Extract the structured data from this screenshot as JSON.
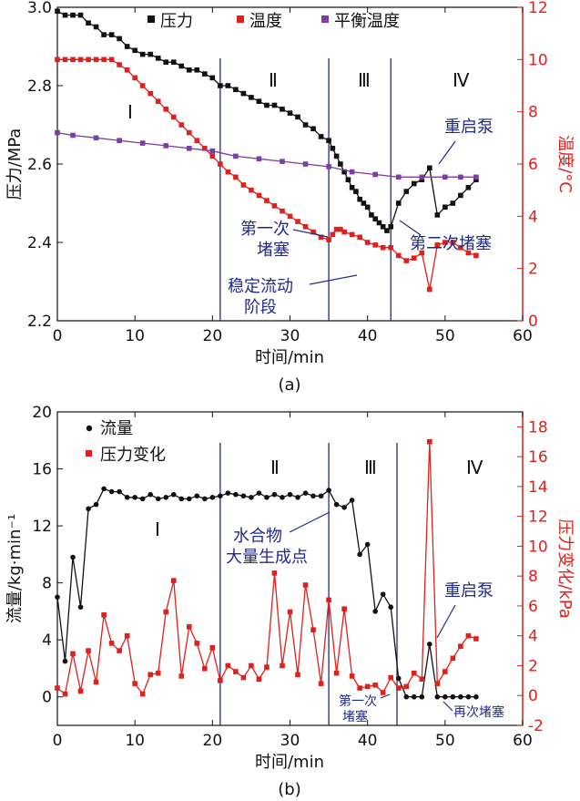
{
  "colors": {
    "black": "#111111",
    "red": "#e0201c",
    "purple": "#7a3fa0",
    "navy": "#222a8a"
  },
  "chart_data": [
    {
      "panel": "(a)",
      "type": "line",
      "x_label": "时间/min",
      "y_label_left": "压力/MPa",
      "y_label_right": "温度/°C",
      "xlim": [
        0,
        60
      ],
      "ylim_left": [
        2.2,
        3.0
      ],
      "ylim_right": [
        0,
        12
      ],
      "x_ticks": [
        "0",
        "10",
        "20",
        "30",
        "40",
        "50",
        "60"
      ],
      "y_ticks_left": [
        "2.2",
        "2.4",
        "2.6",
        "2.8",
        "3.0"
      ],
      "y_ticks_right": [
        "0",
        "2",
        "4",
        "6",
        "8",
        "10",
        "12"
      ],
      "legend": [
        "压力",
        "温度",
        "平衡温度"
      ],
      "series": [
        {
          "name": "压力",
          "axis": "left",
          "color": "#111111",
          "marker": "square",
          "x": [
            0,
            1,
            2,
            3,
            4,
            5,
            6,
            7,
            8,
            9,
            10,
            11,
            12,
            13,
            14,
            15,
            16,
            17,
            18,
            19,
            20,
            21,
            22,
            23,
            24,
            25,
            26,
            27,
            28,
            29,
            30,
            31,
            32,
            33,
            34,
            35,
            35.5,
            36,
            36.5,
            37,
            37.5,
            38,
            38.5,
            39,
            39.5,
            40,
            40.5,
            41,
            41.5,
            42,
            42.5,
            43,
            44,
            45,
            46,
            47,
            48,
            49,
            50,
            51,
            52,
            53,
            54
          ],
          "y": [
            2.99,
            2.98,
            2.98,
            2.98,
            2.96,
            2.95,
            2.93,
            2.93,
            2.92,
            2.9,
            2.89,
            2.88,
            2.88,
            2.87,
            2.86,
            2.86,
            2.85,
            2.84,
            2.84,
            2.83,
            2.82,
            2.8,
            2.8,
            2.79,
            2.78,
            2.77,
            2.76,
            2.75,
            2.75,
            2.74,
            2.73,
            2.72,
            2.7,
            2.69,
            2.67,
            2.66,
            2.64,
            2.62,
            2.6,
            2.58,
            2.56,
            2.54,
            2.53,
            2.51,
            2.5,
            2.49,
            2.47,
            2.46,
            2.45,
            2.44,
            2.43,
            2.44,
            2.5,
            2.53,
            2.55,
            2.56,
            2.59,
            2.47,
            2.49,
            2.5,
            2.52,
            2.54,
            2.56
          ]
        },
        {
          "name": "温度",
          "axis": "right",
          "color": "#e0201c",
          "marker": "square",
          "x": [
            0,
            1,
            2,
            3,
            4,
            5,
            6,
            7,
            8,
            9,
            10,
            11,
            12,
            13,
            14,
            15,
            16,
            17,
            18,
            19,
            20,
            21,
            22,
            23,
            24,
            25,
            26,
            27,
            28,
            29,
            30,
            31,
            32,
            33,
            34,
            35,
            35.5,
            36,
            36.5,
            37,
            38,
            39,
            40,
            41,
            42,
            43,
            44,
            45,
            46,
            47,
            48,
            49,
            50,
            51,
            52,
            53,
            54
          ],
          "y": [
            10.0,
            10.0,
            10.0,
            10.0,
            10.0,
            10.0,
            10.0,
            10.0,
            9.8,
            9.6,
            9.3,
            9.0,
            8.7,
            8.4,
            8.1,
            7.8,
            7.5,
            7.2,
            6.9,
            6.6,
            6.3,
            6.0,
            5.7,
            5.5,
            5.2,
            5.0,
            4.8,
            4.6,
            4.4,
            4.2,
            4.0,
            3.8,
            3.6,
            3.4,
            3.2,
            3.1,
            3.3,
            3.5,
            3.5,
            3.4,
            3.3,
            3.2,
            3.0,
            2.9,
            2.8,
            2.8,
            2.5,
            2.3,
            2.4,
            2.6,
            1.2,
            2.9,
            3.0,
            3.0,
            2.8,
            2.6,
            2.5
          ]
        },
        {
          "name": "平衡温度",
          "axis": "right",
          "color": "#7a3fa0",
          "marker": "square",
          "x": [
            0,
            2,
            5,
            8,
            11,
            14,
            17,
            20,
            23,
            26,
            29,
            32,
            35,
            38,
            41,
            44,
            47,
            50,
            52,
            54
          ],
          "y": [
            7.2,
            7.1,
            7.0,
            6.9,
            6.8,
            6.7,
            6.6,
            6.5,
            6.3,
            6.2,
            6.1,
            6.0,
            5.9,
            5.7,
            5.6,
            5.5,
            5.5,
            5.5,
            5.5,
            5.5
          ]
        }
      ],
      "vlines_x": [
        21,
        35,
        43
      ],
      "phase_labels": [
        "Ⅰ",
        "Ⅱ",
        "Ⅲ",
        "Ⅳ"
      ],
      "annotations": [
        "重启泵",
        "第一次",
        "堵塞",
        "第二次堵塞",
        "稳定流动",
        "阶段"
      ]
    },
    {
      "panel": "(b)",
      "type": "line",
      "x_label": "时间/min",
      "y_label_left": "流量/kg·min⁻¹",
      "y_label_right": "压力变化/kPa",
      "xlim": [
        0,
        60
      ],
      "ylim_left": [
        -2,
        20
      ],
      "ylim_right": [
        -2,
        19
      ],
      "x_ticks": [
        "0",
        "10",
        "20",
        "30",
        "40",
        "50",
        "60"
      ],
      "y_ticks_left": [
        "0",
        "4",
        "8",
        "12",
        "16",
        "20"
      ],
      "y_ticks_right": [
        "-2",
        "0",
        "2",
        "4",
        "6",
        "8",
        "10",
        "12",
        "14",
        "16",
        "18"
      ],
      "legend": [
        "流量",
        "压力变化"
      ],
      "series": [
        {
          "name": "流量",
          "axis": "left",
          "color": "#111111",
          "marker": "circle",
          "x": [
            0,
            1,
            2,
            3,
            4,
            5,
            6,
            7,
            8,
            9,
            10,
            11,
            12,
            13,
            14,
            15,
            16,
            17,
            18,
            19,
            20,
            21,
            22,
            23,
            24,
            25,
            26,
            27,
            28,
            29,
            30,
            31,
            32,
            33,
            34,
            35,
            36,
            37,
            38,
            39,
            40,
            41,
            42,
            43,
            44,
            45,
            46,
            47,
            48,
            49,
            50,
            51,
            52,
            53,
            54
          ],
          "y": [
            7.0,
            2.5,
            9.8,
            6.3,
            13.2,
            13.5,
            14.6,
            14.4,
            14.4,
            14.0,
            14.0,
            13.9,
            14.2,
            13.9,
            14.0,
            14.2,
            13.9,
            13.9,
            14.1,
            13.9,
            14.0,
            14.1,
            14.3,
            14.2,
            14.1,
            14.0,
            14.3,
            14.0,
            14.2,
            14.0,
            14.2,
            14.0,
            14.3,
            14.1,
            14.1,
            14.5,
            13.5,
            13.3,
            13.8,
            10.0,
            10.7,
            6.0,
            7.2,
            6.3,
            1.3,
            0.0,
            0.0,
            0.0,
            3.7,
            0.0,
            0.0,
            0.0,
            0.0,
            0.0,
            0.0
          ]
        },
        {
          "name": "压力变化",
          "axis": "right",
          "color": "#e0201c",
          "marker": "square",
          "x": [
            0,
            1,
            2,
            3,
            4,
            5,
            6,
            7,
            8,
            9,
            10,
            11,
            12,
            13,
            14,
            15,
            16,
            17,
            18,
            19,
            20,
            21,
            22,
            23,
            24,
            25,
            26,
            27,
            28,
            29,
            30,
            31,
            32,
            33,
            34,
            35,
            36,
            37,
            38,
            39,
            40,
            41,
            42,
            43,
            44,
            45,
            46,
            47,
            48,
            49,
            50,
            51,
            52,
            53,
            54
          ],
          "y": [
            0.5,
            0.1,
            2.8,
            0.3,
            3.0,
            0.9,
            5.4,
            3.5,
            3.0,
            4.0,
            0.8,
            0.1,
            1.4,
            1.5,
            5.6,
            7.7,
            1.3,
            4.6,
            3.5,
            1.8,
            3.2,
            1.0,
            2.0,
            1.6,
            1.2,
            2.0,
            1.1,
            1.9,
            8.2,
            2.0,
            5.6,
            1.4,
            7.4,
            4.4,
            0.8,
            6.4,
            1.5,
            5.8,
            1.3,
            0.5,
            0.6,
            0.7,
            0.2,
            1.2,
            0.5,
            0.6,
            1.5,
            1.1,
            17.0,
            0.8,
            1.6,
            2.5,
            3.3,
            4.0,
            3.8
          ]
        }
      ],
      "vlines_x": [
        21,
        35,
        43.8
      ],
      "phase_labels": [
        "Ⅰ",
        "Ⅱ",
        "Ⅲ",
        "Ⅳ"
      ],
      "annotations": [
        "水合物",
        "大量生成点",
        "重启泵",
        "第一次",
        "堵塞",
        "再次堵塞"
      ]
    }
  ]
}
